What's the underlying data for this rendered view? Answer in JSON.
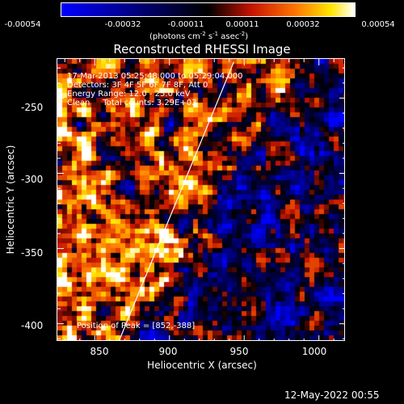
{
  "colorbar": {
    "ticks": [
      "-0.00054",
      "-0.00032",
      "-0.00011",
      "0.00011",
      "0.00032",
      "0.00054"
    ],
    "unit_label": "(photons cm",
    "unit_exp1": "-2",
    "unit_mid": " s",
    "unit_exp2": "-1",
    "unit_mid2": " asec",
    "unit_exp3": "-2",
    "unit_end": ")",
    "colors": [
      "#0000ff",
      "#000000",
      "#ff0000",
      "#ffff00",
      "#ffffff"
    ]
  },
  "chart_data": {
    "type": "heatmap",
    "title": "Reconstructed RHESSI Image",
    "xlabel": "Heliocentric X (arcsec)",
    "ylabel": "Heliocentric Y (arcsec)",
    "xlim": [
      825,
      1018
    ],
    "ylim": [
      -412,
      -224
    ],
    "x_ticks": [
      "850",
      "900",
      "950",
      "1000"
    ],
    "y_ticks": [
      "-250",
      "-300",
      "-350",
      "-400"
    ],
    "limb_line": {
      "x": [
        866,
        943
      ],
      "y": [
        -412,
        -226
      ]
    },
    "annotations": [
      "17-Mar-2013 05:25:48.000 to 05:29:04.000",
      "Detectors: 3F 4F 5F 6F 7F 8F, Att 0",
      "Energy Range: 12.0 - 25.0 keV",
      "Clean     Total counts: 3.29E+03"
    ],
    "peak_label": "Position of Peak = [852,-388]",
    "grid": false
  },
  "footer": {
    "timestamp": "12-May-2022 00:55"
  }
}
